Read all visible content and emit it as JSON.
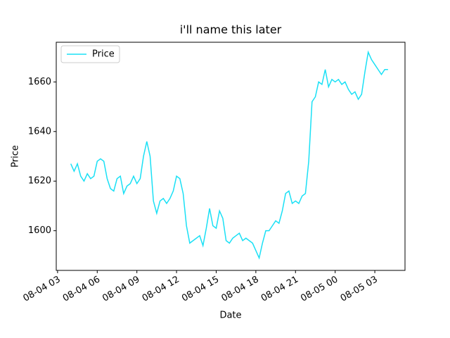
{
  "chart_data": {
    "type": "line",
    "title": "i'll name this later",
    "xlabel": "Date",
    "ylabel": "Price",
    "x": [
      "08-04 04:00",
      "08-04 04:15",
      "08-04 04:30",
      "08-04 04:45",
      "08-04 05:00",
      "08-04 05:15",
      "08-04 05:30",
      "08-04 05:45",
      "08-04 06:00",
      "08-04 06:15",
      "08-04 06:30",
      "08-04 06:45",
      "08-04 07:00",
      "08-04 07:15",
      "08-04 07:30",
      "08-04 07:45",
      "08-04 08:00",
      "08-04 08:15",
      "08-04 08:30",
      "08-04 08:45",
      "08-04 09:00",
      "08-04 09:15",
      "08-04 09:30",
      "08-04 09:45",
      "08-04 10:00",
      "08-04 10:15",
      "08-04 10:30",
      "08-04 10:45",
      "08-04 11:00",
      "08-04 11:15",
      "08-04 11:30",
      "08-04 11:45",
      "08-04 12:00",
      "08-04 12:15",
      "08-04 12:30",
      "08-04 12:45",
      "08-04 13:00",
      "08-04 13:15",
      "08-04 13:30",
      "08-04 13:45",
      "08-04 14:00",
      "08-04 14:15",
      "08-04 14:30",
      "08-04 14:45",
      "08-04 15:00",
      "08-04 15:15",
      "08-04 15:30",
      "08-04 15:45",
      "08-04 16:00",
      "08-04 16:15",
      "08-04 16:30",
      "08-04 16:45",
      "08-04 17:00",
      "08-04 17:15",
      "08-04 17:30",
      "08-04 17:45",
      "08-04 18:00",
      "08-04 18:15",
      "08-04 18:30",
      "08-04 18:45",
      "08-04 19:00",
      "08-04 19:15",
      "08-04 19:30",
      "08-04 19:45",
      "08-04 20:00",
      "08-04 20:15",
      "08-04 20:30",
      "08-04 20:45",
      "08-04 21:00",
      "08-04 21:15",
      "08-04 21:30",
      "08-04 21:45",
      "08-04 22:00",
      "08-04 22:15",
      "08-04 22:30",
      "08-04 22:45",
      "08-04 23:00",
      "08-04 23:15",
      "08-04 23:30",
      "08-04 23:45",
      "08-05 00:00",
      "08-05 00:15",
      "08-05 00:30",
      "08-05 00:45",
      "08-05 01:00",
      "08-05 01:15",
      "08-05 01:30",
      "08-05 01:45",
      "08-05 02:00",
      "08-05 02:15",
      "08-05 02:30",
      "08-05 02:45",
      "08-05 03:00",
      "08-05 03:15",
      "08-05 03:30",
      "08-05 03:45",
      "08-05 04:00"
    ],
    "series": [
      {
        "name": "Price",
        "color": "#1ae0f5",
        "values": [
          1627,
          1624,
          1627,
          1622,
          1620,
          1623,
          1621,
          1622,
          1628,
          1629,
          1628,
          1621,
          1617,
          1616,
          1621,
          1622,
          1615,
          1618,
          1619,
          1622,
          1619,
          1621,
          1630,
          1636,
          1630,
          1612,
          1607,
          1612,
          1613,
          1611,
          1613,
          1616,
          1622,
          1621,
          1615,
          1602,
          1595,
          1596,
          1597,
          1598,
          1594,
          1601,
          1609,
          1602,
          1601,
          1608,
          1605,
          1596,
          1595,
          1597,
          1598,
          1599,
          1596,
          1597,
          1596,
          1595,
          1592,
          1589,
          1595,
          1600,
          1600,
          1602,
          1604,
          1603,
          1608,
          1615,
          1616,
          1611,
          1612,
          1611,
          1614,
          1615,
          1628,
          1652,
          1654,
          1660,
          1659,
          1665,
          1658,
          1661,
          1660,
          1661,
          1659,
          1660,
          1657,
          1655,
          1656,
          1653,
          1655,
          1664,
          1672,
          1669,
          1667,
          1665,
          1663,
          1665,
          1665
        ]
      }
    ],
    "xlim": [
      "08-04 02:54",
      "08-05 05:17"
    ],
    "xticks": [
      {
        "value": "08-04 03:00",
        "label": "08-04 03"
      },
      {
        "value": "08-04 06:00",
        "label": "08-04 06"
      },
      {
        "value": "08-04 09:00",
        "label": "08-04 09"
      },
      {
        "value": "08-04 12:00",
        "label": "08-04 12"
      },
      {
        "value": "08-04 15:00",
        "label": "08-04 15"
      },
      {
        "value": "08-04 18:00",
        "label": "08-04 18"
      },
      {
        "value": "08-04 21:00",
        "label": "08-04 21"
      },
      {
        "value": "08-05 00:00",
        "label": "08-05 00"
      },
      {
        "value": "08-05 03:00",
        "label": "08-05 03"
      }
    ],
    "ylim": [
      1584,
      1676
    ],
    "yticks": [
      1600,
      1620,
      1640,
      1660
    ],
    "legend": "upper left"
  }
}
